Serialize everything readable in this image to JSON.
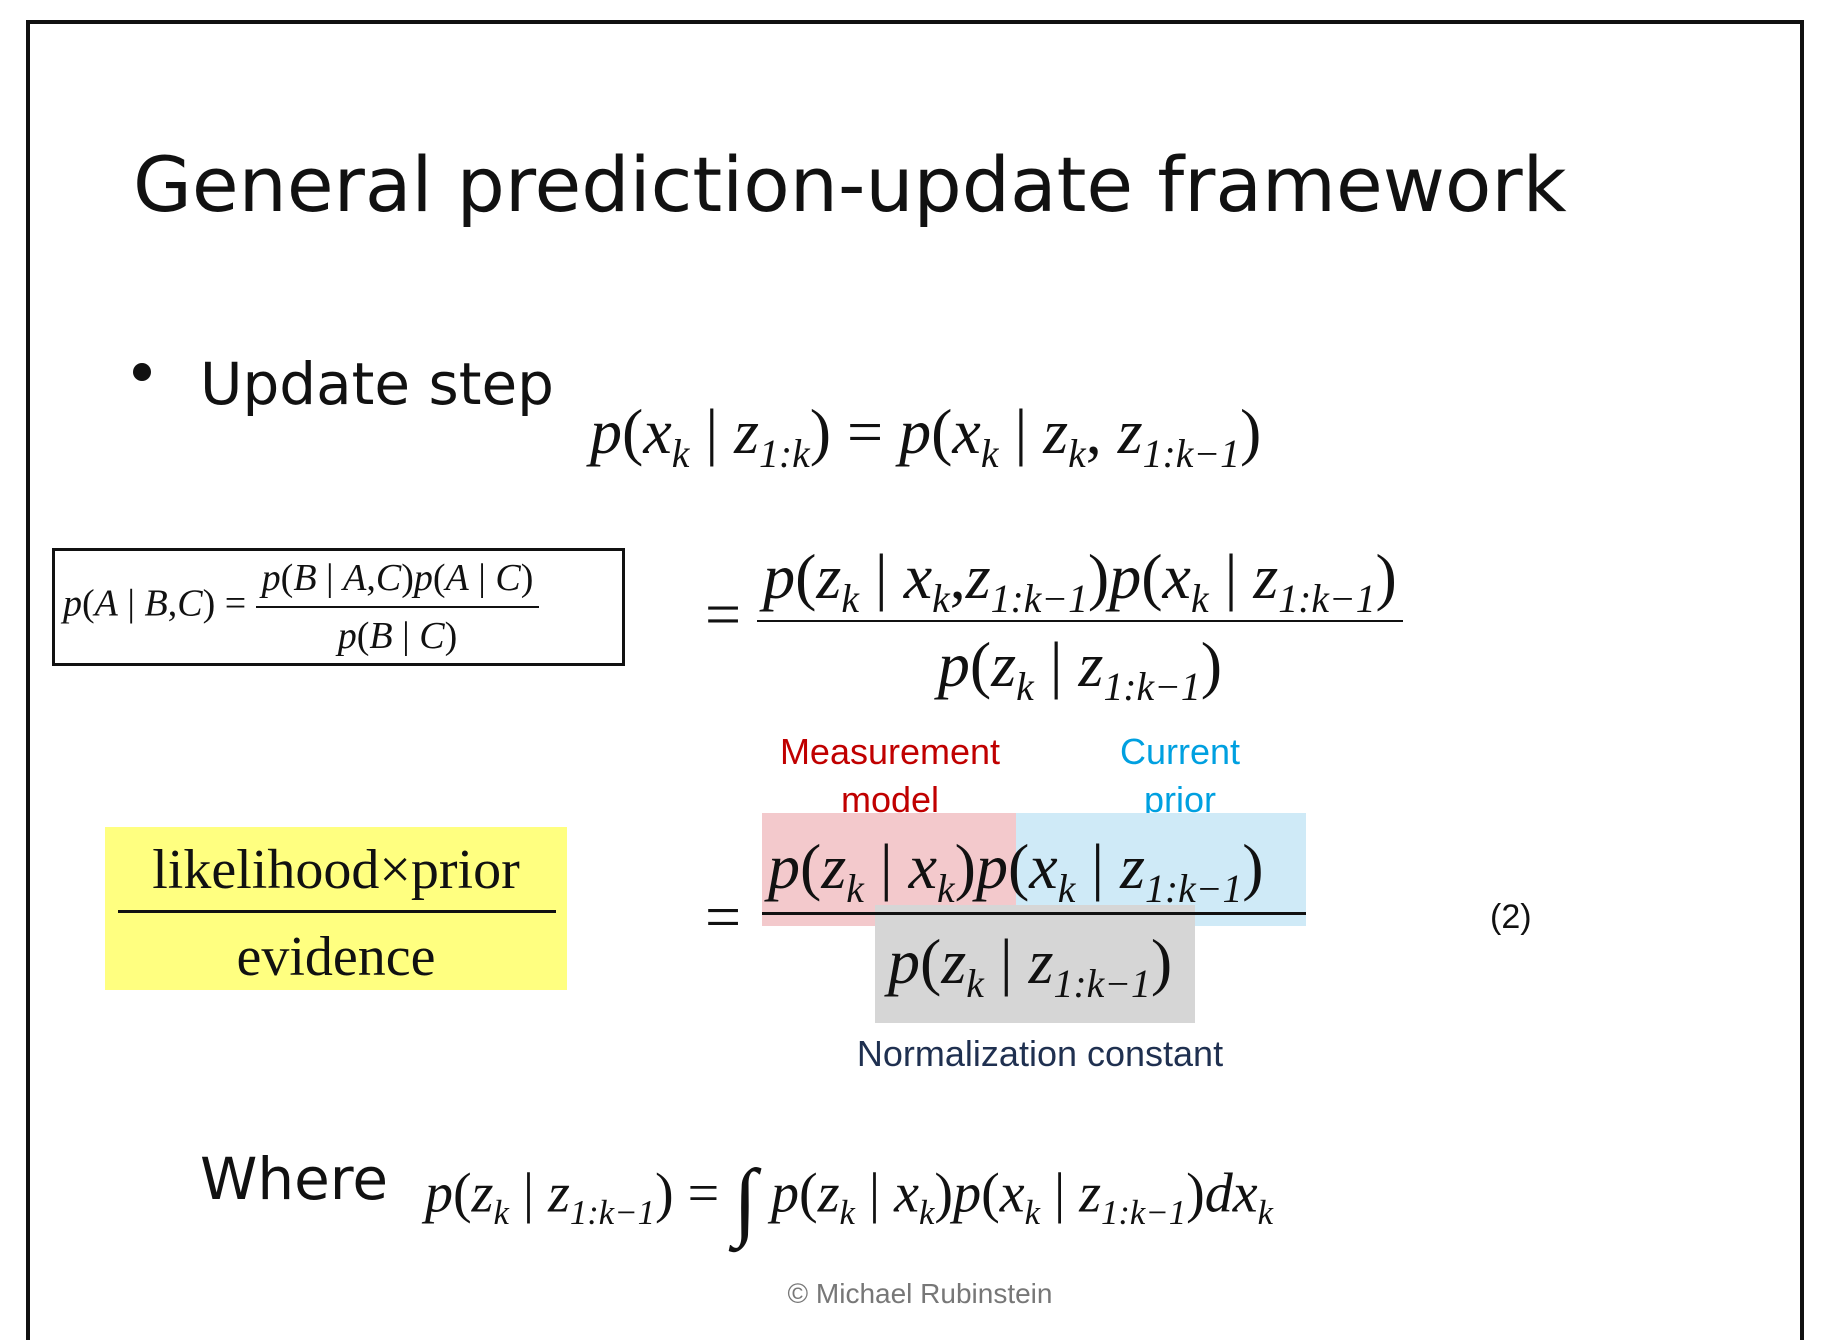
{
  "slide": {
    "title": "General prediction-update framework",
    "bullet": "Update step",
    "where_label": "Where",
    "footer": "© Michael  Rubinstein",
    "equation_number": "(2)"
  },
  "equations": {
    "eq1": "p(x_k | z_{1:k}) = p(x_k | z_k, z_{1:k-1})",
    "bayes_rule": "p(A | B,C) = p(B | A,C) p(A | C) / p(B | C)",
    "eq2": "= p(z_k | x_k, z_{1:k-1}) p(x_k | z_{1:k-1}) / p(z_k | z_{1:k-1})",
    "eq3": "= p(z_k | x_k) p(x_k | z_{1:k-1}) / p(z_k | z_{1:k-1})",
    "where_eq": "p(z_k | z_{1:k-1}) = ∫ p(z_k | x_k) p(x_k | z_{1:k-1}) dx_k"
  },
  "annotations": {
    "measurement_model": "Measurement model",
    "current_prior": "Current prior",
    "normalization_constant": "Normalization constant",
    "likelihood_prior": "likelihood×prior",
    "evidence": "evidence"
  },
  "colors": {
    "measurement": "#c00000",
    "prior": "#00a0e0",
    "normalization": "#1f3050",
    "highlight_red": "#f3c9cc",
    "highlight_blue": "#cfeaf7",
    "highlight_gray": "#d6d6d6",
    "highlight_yellow": "#ffff80"
  }
}
